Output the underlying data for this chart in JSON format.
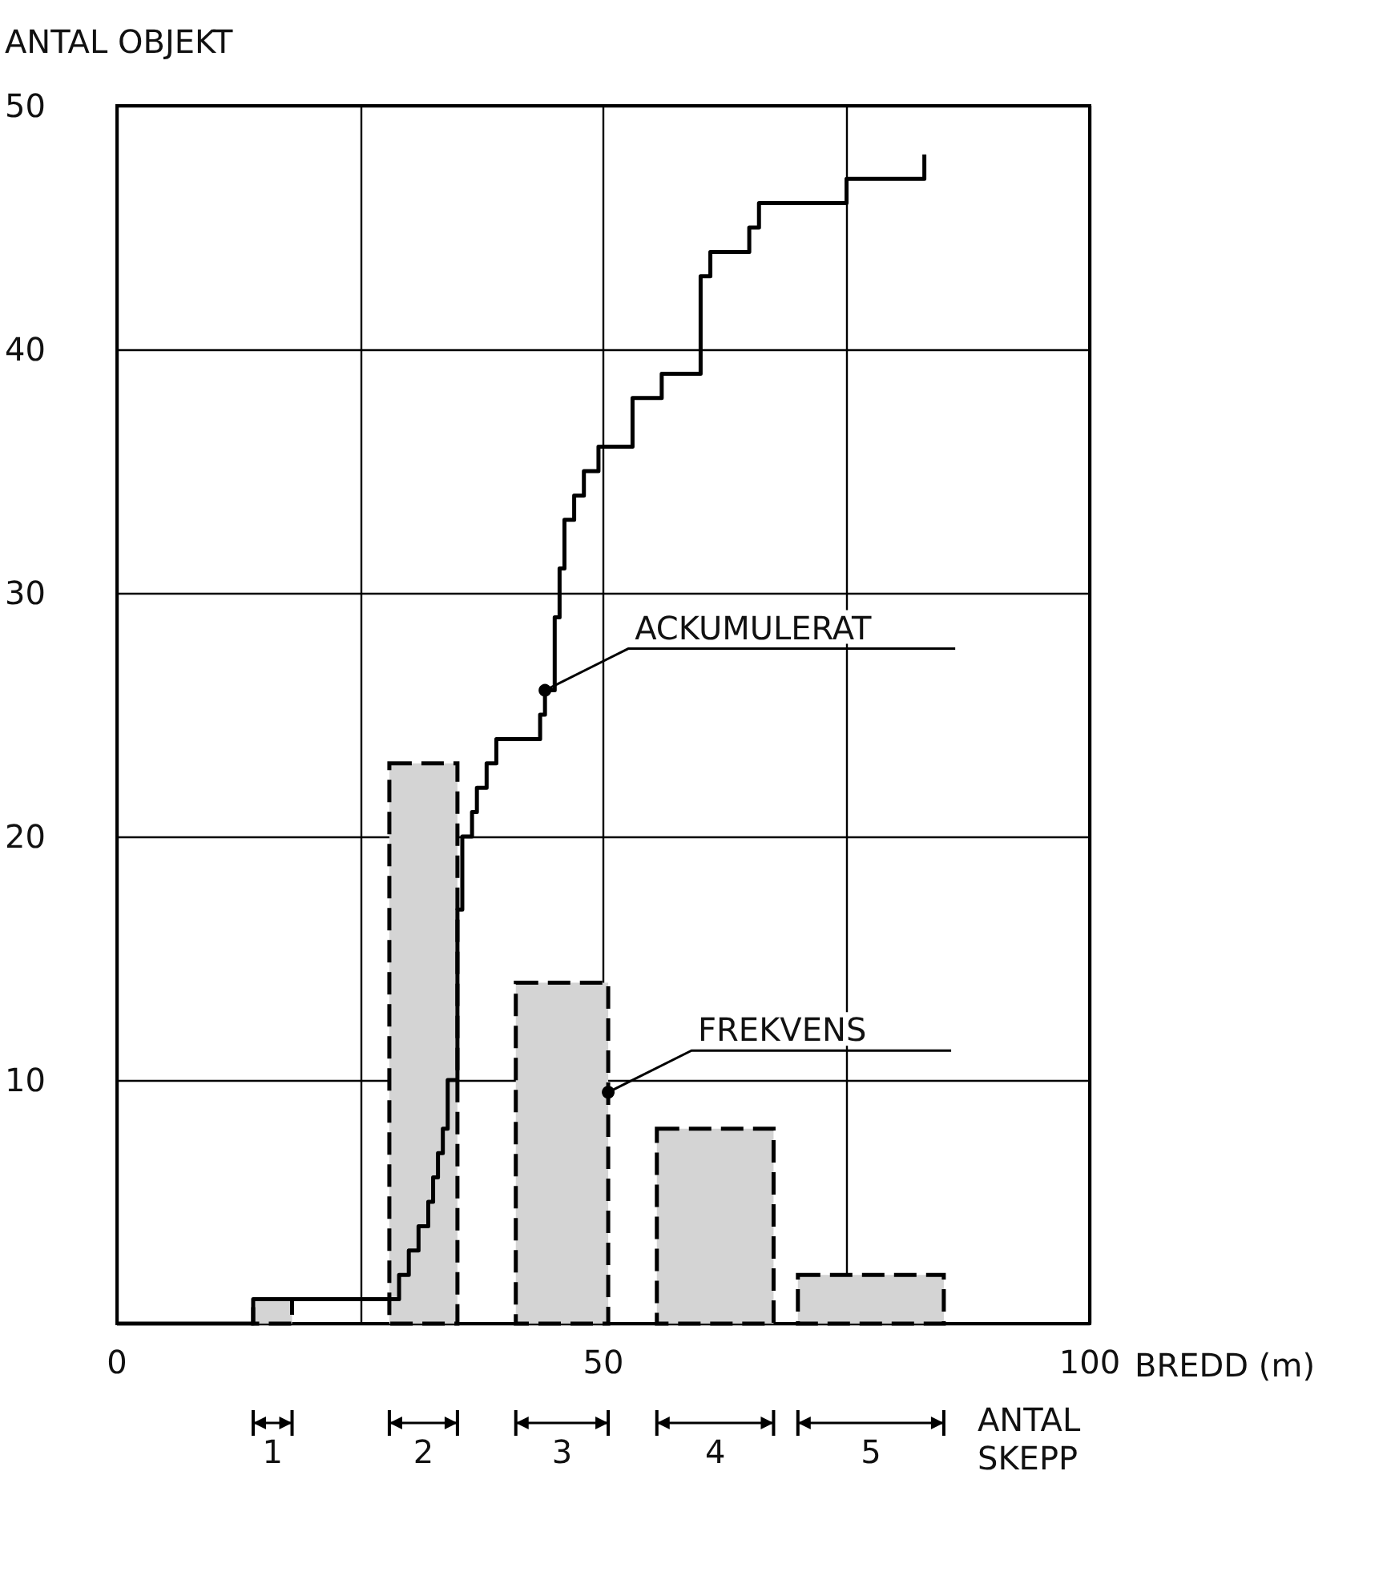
{
  "chart_data": {
    "type": "histogram",
    "xlabel": "BREDD (m)",
    "ylabel": "ANTAL OBJEKT",
    "xlim": [
      0,
      100
    ],
    "xticks": [
      0,
      {
        "value": 25,
        "label": null
      },
      50,
      {
        "value": 75,
        "label": null
      },
      100
    ],
    "ylim": [
      0,
      50
    ],
    "yticks": [
      {
        "value": 0,
        "label": null
      },
      10,
      20,
      30,
      40,
      50
    ],
    "grid": true,
    "marker": "none",
    "series": [
      {
        "color": "#d4d4d4",
        "bins": [
          14,
          18,
          28,
          35,
          41,
          50.5,
          55.5,
          67.5,
          70,
          85
        ],
        "values": [
          1,
          0,
          23,
          0,
          14,
          0,
          8,
          0,
          2
        ],
        "line_style": "dashed"
      },
      {
        "type": "step",
        "color": "#000000",
        "line_style": "solid",
        "x": [
          0,
          14,
          29,
          30,
          31,
          32,
          32.5,
          33,
          33.5,
          34,
          35,
          35.5,
          36.5,
          37,
          38,
          39,
          43.5,
          44,
          45,
          45.5,
          46,
          47,
          48,
          49.5,
          53,
          56,
          60,
          61,
          65,
          66,
          75,
          83
        ],
        "values": [
          0,
          1,
          2,
          3,
          4,
          5,
          6,
          7,
          8,
          10,
          17,
          20,
          21,
          22,
          23,
          24,
          25,
          26,
          29,
          31,
          33,
          34,
          35,
          36,
          38,
          39,
          43,
          44,
          45,
          46,
          47,
          48
        ]
      }
    ],
    "annotations": [
      {
        "text": "ACKUMULERAT",
        "x": 44,
        "y": 26
      },
      {
        "text": "FREKVENS",
        "x": 50.5,
        "y": 9.5
      },
      "1",
      "2",
      "3",
      "4",
      "5",
      "ANTAL SKEPP"
    ]
  }
}
